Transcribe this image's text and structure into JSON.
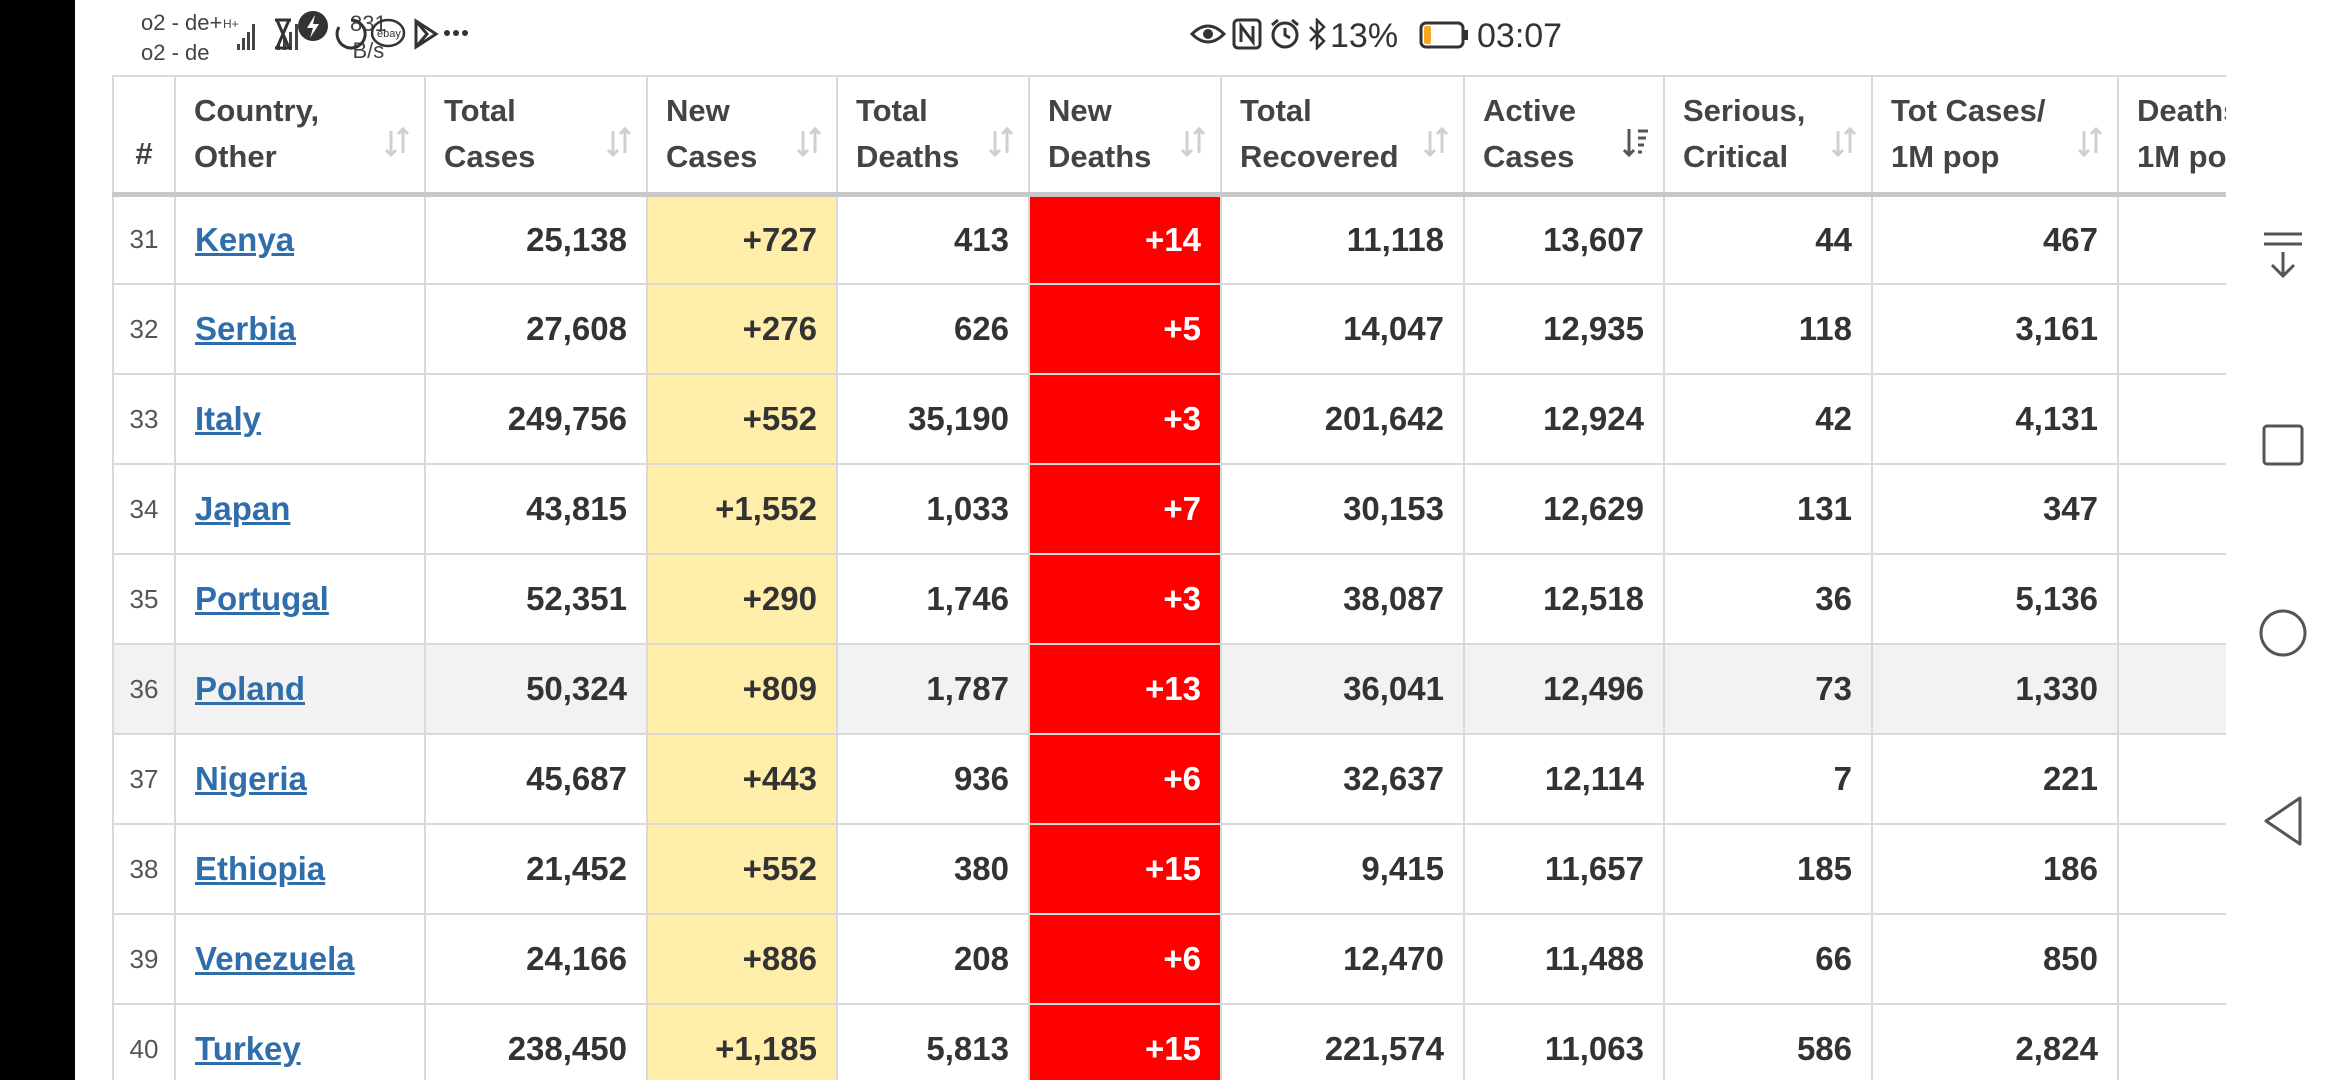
{
  "status_bar": {
    "carrier_line1": "o2 - de+",
    "carrier_line2": "o2 - de",
    "speed_value": "831",
    "speed_unit": "B/s",
    "battery_pct": "13%",
    "time": "03:07",
    "icons": [
      "hourglass-icon",
      "lightning-icon",
      "circle-loading-icon",
      "ebay-icon",
      "play-store-icon",
      "more-dots-icon",
      "eye-icon",
      "nfc-icon",
      "alarm-icon",
      "bluetooth-icon",
      "battery-icon"
    ]
  },
  "table": {
    "headers": [
      {
        "line1": "#",
        "line2": ""
      },
      {
        "line1": "Country,",
        "line2": "Other"
      },
      {
        "line1": "Total",
        "line2": "Cases"
      },
      {
        "line1": "New",
        "line2": "Cases"
      },
      {
        "line1": "Total",
        "line2": "Deaths"
      },
      {
        "line1": "New",
        "line2": "Deaths"
      },
      {
        "line1": "Total",
        "line2": "Recovered"
      },
      {
        "line1": "Active",
        "line2": "Cases"
      },
      {
        "line1": "Serious,",
        "line2": "Critical"
      },
      {
        "line1": "Tot Cases/",
        "line2": "1M pop"
      },
      {
        "line1": "Deaths",
        "line2": "1M po"
      }
    ],
    "rows": [
      {
        "rank": "31",
        "country": "Kenya",
        "total_cases": "25,138",
        "new_cases": "+727",
        "total_deaths": "413",
        "new_deaths": "+14",
        "total_recovered": "11,118",
        "active_cases": "13,607",
        "serious": "44",
        "per_million": "467"
      },
      {
        "rank": "32",
        "country": "Serbia",
        "total_cases": "27,608",
        "new_cases": "+276",
        "total_deaths": "626",
        "new_deaths": "+5",
        "total_recovered": "14,047",
        "active_cases": "12,935",
        "serious": "118",
        "per_million": "3,161"
      },
      {
        "rank": "33",
        "country": "Italy",
        "total_cases": "249,756",
        "new_cases": "+552",
        "total_deaths": "35,190",
        "new_deaths": "+3",
        "total_recovered": "201,642",
        "active_cases": "12,924",
        "serious": "42",
        "per_million": "4,131"
      },
      {
        "rank": "34",
        "country": "Japan",
        "total_cases": "43,815",
        "new_cases": "+1,552",
        "total_deaths": "1,033",
        "new_deaths": "+7",
        "total_recovered": "30,153",
        "active_cases": "12,629",
        "serious": "131",
        "per_million": "347"
      },
      {
        "rank": "35",
        "country": "Portugal",
        "total_cases": "52,351",
        "new_cases": "+290",
        "total_deaths": "1,746",
        "new_deaths": "+3",
        "total_recovered": "38,087",
        "active_cases": "12,518",
        "serious": "36",
        "per_million": "5,136"
      },
      {
        "rank": "36",
        "country": "Poland",
        "total_cases": "50,324",
        "new_cases": "+809",
        "total_deaths": "1,787",
        "new_deaths": "+13",
        "total_recovered": "36,041",
        "active_cases": "12,496",
        "serious": "73",
        "per_million": "1,330"
      },
      {
        "rank": "37",
        "country": "Nigeria",
        "total_cases": "45,687",
        "new_cases": "+443",
        "total_deaths": "936",
        "new_deaths": "+6",
        "total_recovered": "32,637",
        "active_cases": "12,114",
        "serious": "7",
        "per_million": "221"
      },
      {
        "rank": "38",
        "country": "Ethiopia",
        "total_cases": "21,452",
        "new_cases": "+552",
        "total_deaths": "380",
        "new_deaths": "+15",
        "total_recovered": "9,415",
        "active_cases": "11,657",
        "serious": "185",
        "per_million": "186"
      },
      {
        "rank": "39",
        "country": "Venezuela",
        "total_cases": "24,166",
        "new_cases": "+886",
        "total_deaths": "208",
        "new_deaths": "+6",
        "total_recovered": "12,470",
        "active_cases": "11,488",
        "serious": "66",
        "per_million": "850"
      },
      {
        "rank": "40",
        "country": "Turkey",
        "total_cases": "238,450",
        "new_cases": "+1,185",
        "total_deaths": "5,813",
        "new_deaths": "+15",
        "total_recovered": "221,574",
        "active_cases": "11,063",
        "serious": "586",
        "per_million": "2,824"
      }
    ]
  },
  "nav": {
    "buttons": [
      "scroll-down-icon",
      "recents-square-icon",
      "home-circle-icon",
      "back-triangle-icon"
    ]
  },
  "colors": {
    "new_cases_bg": "#ffeeaa",
    "new_deaths_bg": "#ff0000",
    "link": "#2f6eab",
    "highlight_row_bg": "#f2f2f2"
  }
}
